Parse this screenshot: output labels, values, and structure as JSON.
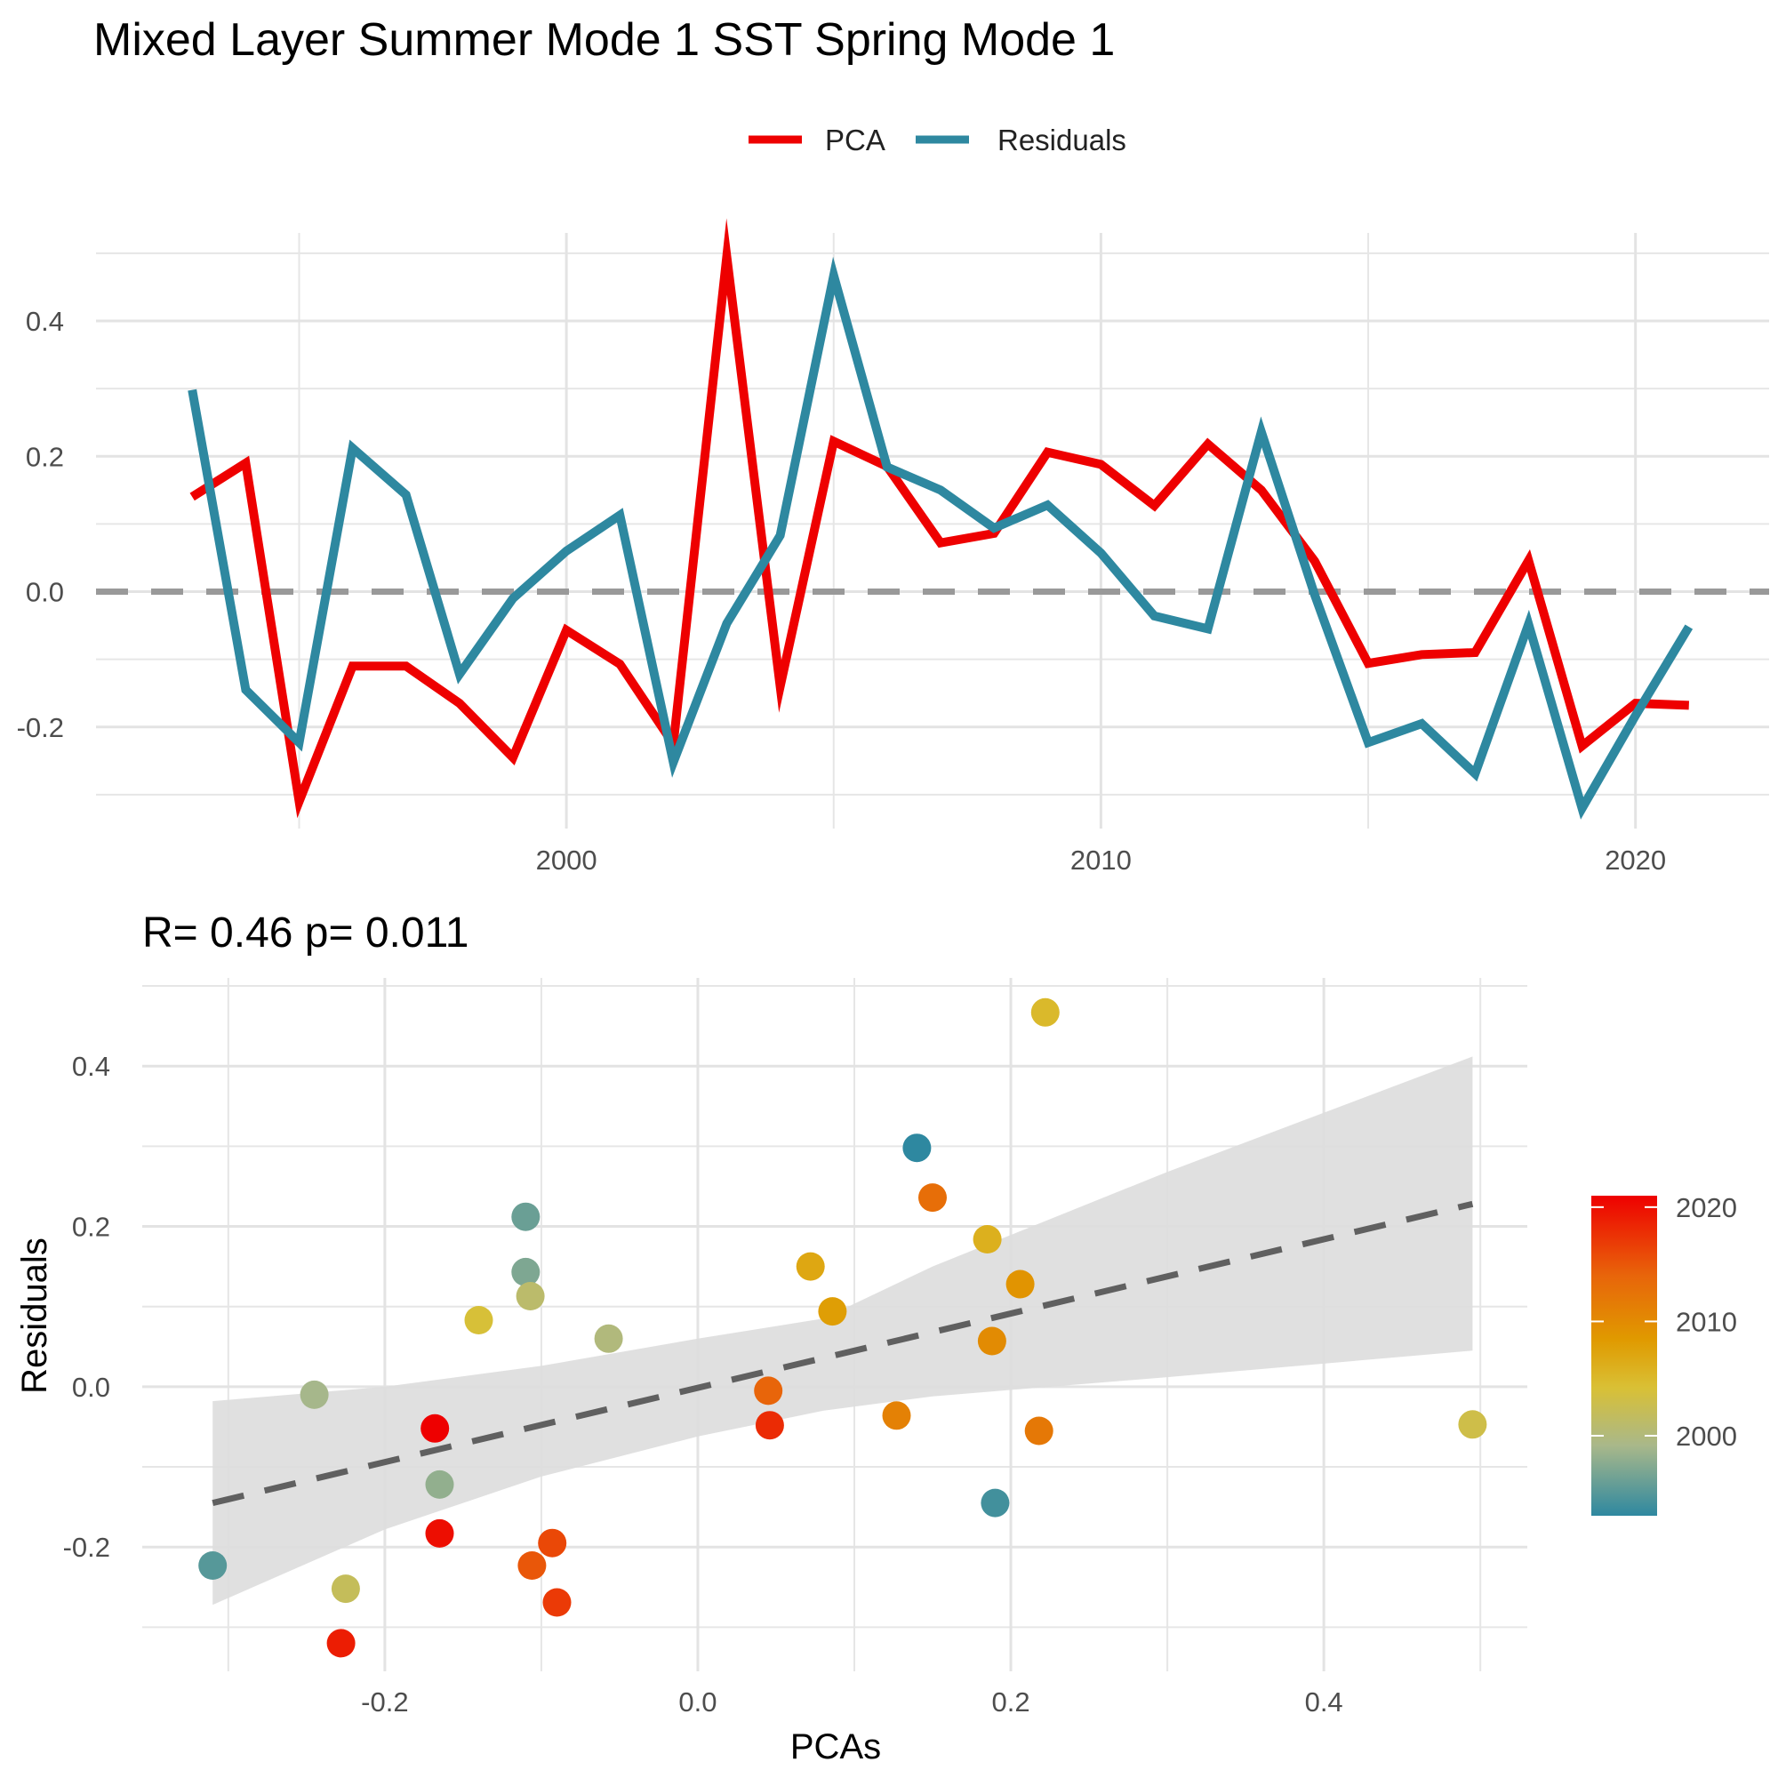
{
  "title": "Mixed Layer Summer Mode 1 SST Spring Mode 1",
  "colors": {
    "pca": "#ee0000",
    "residuals": "#2e88a0",
    "zero_line": "#999999",
    "fit_line": "#606060",
    "ribbon": "#dddddd",
    "grid": "#e6e6e6"
  },
  "chart_data": [
    {
      "type": "line",
      "legend": [
        "PCA",
        "Residuals"
      ],
      "legend_position": "top",
      "x": [
        1993,
        1994,
        1995,
        1996,
        1997,
        1998,
        1999,
        2000,
        2001,
        2002,
        2003,
        2004,
        2005,
        2006,
        2007,
        2008,
        2009,
        2010,
        2011,
        2012,
        2013,
        2014,
        2015,
        2016,
        2017,
        2018,
        2019,
        2020,
        2021
      ],
      "series": [
        {
          "name": "PCA",
          "values": [
            0.14,
            0.19,
            -0.31,
            -0.11,
            -0.11,
            -0.165,
            -0.245,
            -0.057,
            -0.107,
            -0.225,
            0.495,
            -0.14,
            0.222,
            0.185,
            0.072,
            0.086,
            0.206,
            0.188,
            0.127,
            0.218,
            0.15,
            0.045,
            -0.106,
            -0.093,
            -0.09,
            0.046,
            -0.228,
            -0.165,
            -0.168
          ]
        },
        {
          "name": "Residuals",
          "values": [
            0.298,
            -0.145,
            -0.223,
            0.212,
            0.143,
            -0.122,
            -0.01,
            0.06,
            0.113,
            -0.252,
            -0.047,
            0.083,
            0.467,
            0.184,
            0.15,
            0.094,
            0.128,
            0.057,
            -0.036,
            -0.055,
            0.236,
            -0.005,
            -0.223,
            -0.195,
            -0.269,
            -0.048,
            -0.32,
            -0.183,
            -0.052
          ]
        }
      ],
      "xlim": [
        1991.2,
        2022.5
      ],
      "ylim": [
        -0.35,
        0.53
      ],
      "x_ticks": [
        2000,
        2010,
        2020
      ],
      "y_ticks": [
        -0.2,
        0.0,
        0.2,
        0.4
      ],
      "x_tick_labels": [
        "2000",
        "2010",
        "2020"
      ],
      "y_tick_labels": [
        "-0.2",
        "0.0",
        "0.2",
        "0.4"
      ],
      "reference_line": 0,
      "grid": true
    },
    {
      "type": "scatter",
      "stat_label": "R= 0.46  p= 0.011",
      "xlabel": "PCAs",
      "ylabel": "Residuals",
      "x_ticks": [
        -0.2,
        0.0,
        0.2,
        0.4
      ],
      "y_ticks": [
        -0.2,
        0.0,
        0.2,
        0.4
      ],
      "x_tick_labels": [
        "-0.2",
        "0.0",
        "0.2",
        "0.4"
      ],
      "y_tick_labels": [
        "-0.2",
        "0.0",
        "0.2",
        "0.4"
      ],
      "xlim": [
        -0.355,
        0.53
      ],
      "ylim": [
        -0.355,
        0.51
      ],
      "grid": true,
      "colorbar": {
        "labels": [
          "2020",
          "2010",
          "2000"
        ],
        "ticks": [
          2020,
          2010,
          2000
        ],
        "range": [
          1993,
          2021
        ],
        "position": "right"
      },
      "fit_line": {
        "x": [
          -0.31,
          0.495
        ],
        "y": [
          -0.145,
          0.228
        ]
      },
      "confidence_band": {
        "x": [
          -0.31,
          -0.2,
          -0.1,
          0.0,
          0.08,
          0.15,
          0.3,
          0.495
        ],
        "lower": [
          -0.272,
          -0.178,
          -0.112,
          -0.062,
          -0.03,
          -0.012,
          0.012,
          0.045
        ],
        "upper": [
          -0.018,
          0.0,
          0.026,
          0.06,
          0.085,
          0.15,
          0.268,
          0.412
        ]
      }
    }
  ]
}
